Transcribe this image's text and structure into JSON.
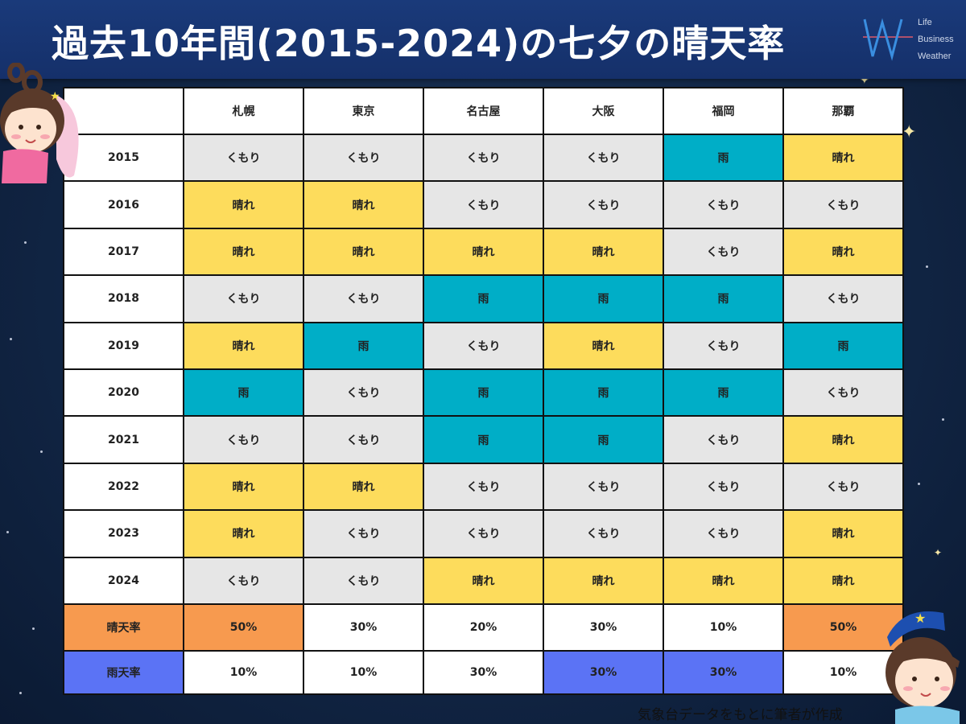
{
  "header": {
    "title": "過去10年間(2015-2024)の七夕の晴天率",
    "logo_lines": [
      "Life",
      "Business",
      "Weather"
    ]
  },
  "colors": {
    "晴れ": "#fddc5c",
    "くもり": "#e6e6e6",
    "雨": "#00aec7",
    "highlight_sunny": "#f79a4f",
    "highlight_rainy": "#5b73f5"
  },
  "chart_data": {
    "type": "table",
    "title": "過去10年間(2015-2024)の七夕の晴天率",
    "columns": [
      "札幌",
      "東京",
      "名古屋",
      "大阪",
      "福岡",
      "那覇"
    ],
    "rows": [
      {
        "year": "2015",
        "cells": [
          "くもり",
          "くもり",
          "くもり",
          "くもり",
          "雨",
          "晴れ"
        ]
      },
      {
        "year": "2016",
        "cells": [
          "晴れ",
          "晴れ",
          "くもり",
          "くもり",
          "くもり",
          "くもり"
        ]
      },
      {
        "year": "2017",
        "cells": [
          "晴れ",
          "晴れ",
          "晴れ",
          "晴れ",
          "くもり",
          "晴れ"
        ]
      },
      {
        "year": "2018",
        "cells": [
          "くもり",
          "くもり",
          "雨",
          "雨",
          "雨",
          "くもり"
        ]
      },
      {
        "year": "2019",
        "cells": [
          "晴れ",
          "雨",
          "くもり",
          "晴れ",
          "くもり",
          "雨"
        ]
      },
      {
        "year": "2020",
        "cells": [
          "雨",
          "くもり",
          "雨",
          "雨",
          "雨",
          "くもり"
        ]
      },
      {
        "year": "2021",
        "cells": [
          "くもり",
          "くもり",
          "雨",
          "雨",
          "くもり",
          "晴れ"
        ]
      },
      {
        "year": "2022",
        "cells": [
          "晴れ",
          "晴れ",
          "くもり",
          "くもり",
          "くもり",
          "くもり"
        ]
      },
      {
        "year": "2023",
        "cells": [
          "晴れ",
          "くもり",
          "くもり",
          "くもり",
          "くもり",
          "晴れ"
        ]
      },
      {
        "year": "2024",
        "cells": [
          "くもり",
          "くもり",
          "晴れ",
          "晴れ",
          "晴れ",
          "晴れ"
        ]
      }
    ],
    "summary": [
      {
        "label": "晴天率",
        "values": [
          "50%",
          "30%",
          "20%",
          "30%",
          "10%",
          "50%"
        ],
        "highlight": [
          true,
          false,
          false,
          false,
          false,
          true
        ],
        "highlight_color": "highlight_sunny"
      },
      {
        "label": "雨天率",
        "values": [
          "10%",
          "10%",
          "30%",
          "30%",
          "30%",
          "10%"
        ],
        "highlight": [
          false,
          false,
          false,
          true,
          true,
          false
        ],
        "highlight_color": "highlight_rainy"
      }
    ]
  },
  "footer": {
    "source": "気象台データをもとに筆者が作成"
  }
}
